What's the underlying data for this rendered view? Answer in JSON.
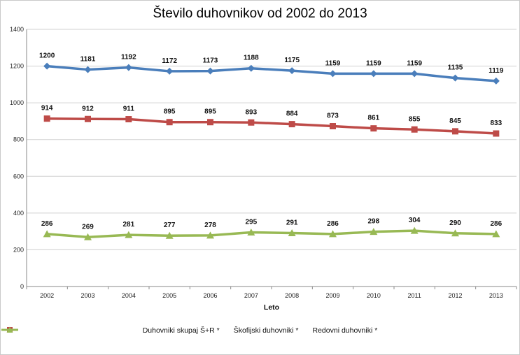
{
  "chart_data": {
    "type": "line",
    "title": "Število duhovnikov od 2002 do 2013",
    "xlabel": "Leto",
    "ylabel": "",
    "ylim": [
      0,
      1400
    ],
    "yticks": [
      0,
      200,
      400,
      600,
      800,
      1000,
      1200,
      1400
    ],
    "categories": [
      "2002",
      "2003",
      "2004",
      "2005",
      "2006",
      "2007",
      "2008",
      "2009",
      "2010",
      "2011",
      "2012",
      "2013"
    ],
    "grid": true,
    "legend_position": "bottom",
    "series": [
      {
        "name": "Duhovniki skupaj Š+R *",
        "color": "#4a7ebb",
        "marker": "diamond",
        "values": [
          1200,
          1181,
          1192,
          1172,
          1173,
          1188,
          1175,
          1159,
          1159,
          1159,
          1135,
          1119
        ]
      },
      {
        "name": "Škofijski duhovniki *",
        "color": "#be4b48",
        "marker": "square",
        "values": [
          914,
          912,
          911,
          895,
          895,
          893,
          884,
          873,
          861,
          855,
          845,
          833
        ]
      },
      {
        "name": "Redovni duhovniki *",
        "color": "#98b954",
        "marker": "triangle",
        "values": [
          286,
          269,
          281,
          277,
          278,
          295,
          291,
          286,
          298,
          304,
          290,
          286
        ]
      }
    ]
  }
}
